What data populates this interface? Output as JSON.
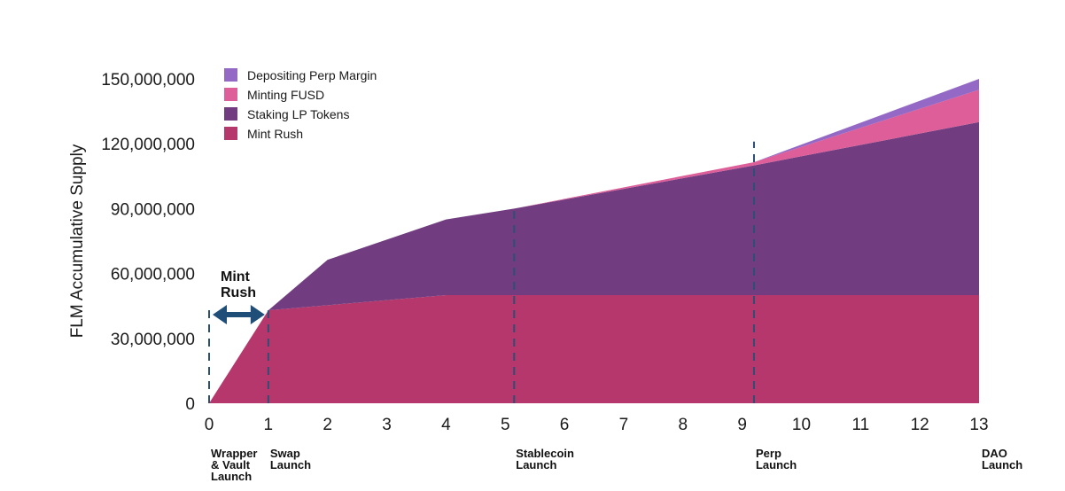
{
  "chart_data": {
    "type": "area",
    "stacked": true,
    "title": "",
    "xlabel": "",
    "ylabel": "FLM Accumulative Supply",
    "xlim": [
      0,
      13
    ],
    "ylim": [
      0,
      150000000
    ],
    "x_ticks": [
      0,
      1,
      2,
      3,
      4,
      5,
      6,
      7,
      8,
      9,
      10,
      11,
      12,
      13
    ],
    "y_ticks": [
      0,
      30000000,
      60000000,
      90000000,
      120000000,
      150000000
    ],
    "y_tick_labels": [
      "0",
      "30,000,000",
      "60,000,000",
      "90,000,000",
      "120,000,000",
      "150,000,000"
    ],
    "grid": false,
    "legend_position": "top-left",
    "series": [
      {
        "name": "Mint Rush",
        "color": "#b5376c",
        "points": [
          [
            0,
            0
          ],
          [
            1,
            43000000
          ],
          [
            4,
            50000000
          ],
          [
            13,
            50000000
          ]
        ]
      },
      {
        "name": "Staking LP Tokens",
        "color": "#713d80",
        "points": [
          [
            0,
            0
          ],
          [
            1,
            0
          ],
          [
            1,
            0
          ],
          [
            2,
            21000000
          ],
          [
            4,
            35000000
          ],
          [
            5.15,
            40000000
          ],
          [
            9.2,
            60000000
          ],
          [
            13,
            80000000
          ]
        ]
      },
      {
        "name": "Minting FUSD",
        "color": "#dd5e99",
        "points": [
          [
            0,
            0
          ],
          [
            5.15,
            0
          ],
          [
            9.2,
            1500000
          ],
          [
            13,
            15000000
          ]
        ]
      },
      {
        "name": "Depositing Perp Margin",
        "color": "#9469c6",
        "points": [
          [
            0,
            0
          ],
          [
            9.2,
            0
          ],
          [
            13,
            5000000
          ]
        ]
      }
    ],
    "legend_order": [
      "Depositing Perp Margin",
      "Minting FUSD",
      "Staking LP Tokens",
      "Mint Rush"
    ],
    "milestones": [
      {
        "x": 0,
        "label": [
          "Wrapper",
          "& Vault",
          "Launch"
        ],
        "line_top": 43000000
      },
      {
        "x": 1,
        "label": [
          "Swap",
          "Launch"
        ],
        "line_top": 43000000
      },
      {
        "x": 5.15,
        "label": [
          "Stablecoin",
          "Launch"
        ],
        "line_top": 90000000
      },
      {
        "x": 9.2,
        "label": [
          "Perp",
          "Launch"
        ],
        "line_top": 121000000
      },
      {
        "x": 13,
        "label": [
          "DAO",
          "Launch"
        ],
        "line_top": null
      }
    ],
    "annotation": {
      "label": [
        "Mint",
        "Rush"
      ],
      "x_from": 0,
      "x_to": 1,
      "y": 41000000,
      "arrow_color": "#1f4e79"
    },
    "dash_color": "#2d4f75"
  }
}
